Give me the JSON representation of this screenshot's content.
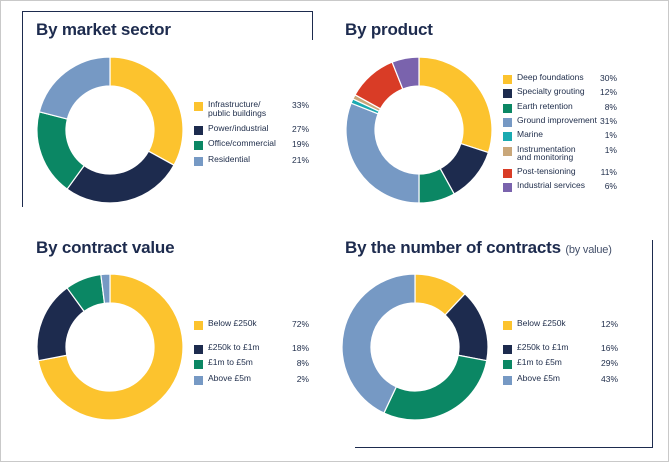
{
  "colors": {
    "yellow": "#fcc32e",
    "navy": "#1d2b4e",
    "green": "#0b8764",
    "blue": "#7699c4",
    "teal": "#1aaab1",
    "tan": "#c9a77a",
    "red": "#d93c26",
    "purple": "#7a63ad"
  },
  "chart_data": [
    {
      "type": "pie",
      "title": "By market sector",
      "categories": [
        "Infrastructure/ public buildings",
        "Power/industrial",
        "Office/commercial",
        "Residential"
      ],
      "values": [
        33,
        27,
        19,
        21
      ],
      "value_labels": [
        "33%",
        "27%",
        "19%",
        "21%"
      ],
      "colors": [
        "#fcc32e",
        "#1d2b4e",
        "#0b8764",
        "#7699c4"
      ]
    },
    {
      "type": "pie",
      "title": "By product",
      "categories": [
        "Deep foundations",
        "Specialty grouting",
        "Earth retention",
        "Ground improvement",
        "Marine",
        "Instrumentation and monitoring",
        "Post-tensioning",
        "Industrial services"
      ],
      "values": [
        30,
        12,
        8,
        31,
        1,
        1,
        11,
        6
      ],
      "value_labels": [
        "30%",
        "12%",
        "8%",
        "31%",
        "1%",
        "1%",
        "11%",
        "6%"
      ],
      "colors": [
        "#fcc32e",
        "#1d2b4e",
        "#0b8764",
        "#7699c4",
        "#1aaab1",
        "#c9a77a",
        "#d93c26",
        "#7a63ad"
      ]
    },
    {
      "type": "pie",
      "title": "By contract value",
      "categories": [
        "Below £250k",
        "£250k to £1m",
        "£1m to £5m",
        "Above £5m"
      ],
      "values": [
        72,
        18,
        8,
        2
      ],
      "value_labels": [
        "72%",
        "18%",
        "8%",
        "2%"
      ],
      "colors": [
        "#fcc32e",
        "#1d2b4e",
        "#0b8764",
        "#7699c4"
      ]
    },
    {
      "type": "pie",
      "title": "By the number of contracts",
      "subtitle": "(by value)",
      "categories": [
        "Below £250k",
        "£250k to £1m",
        "£1m to £5m",
        "Above £5m"
      ],
      "values": [
        12,
        16,
        29,
        43
      ],
      "value_labels": [
        "12%",
        "16%",
        "29%",
        "43%"
      ],
      "colors": [
        "#fcc32e",
        "#1d2b4e",
        "#0b8764",
        "#7699c4"
      ]
    }
  ]
}
